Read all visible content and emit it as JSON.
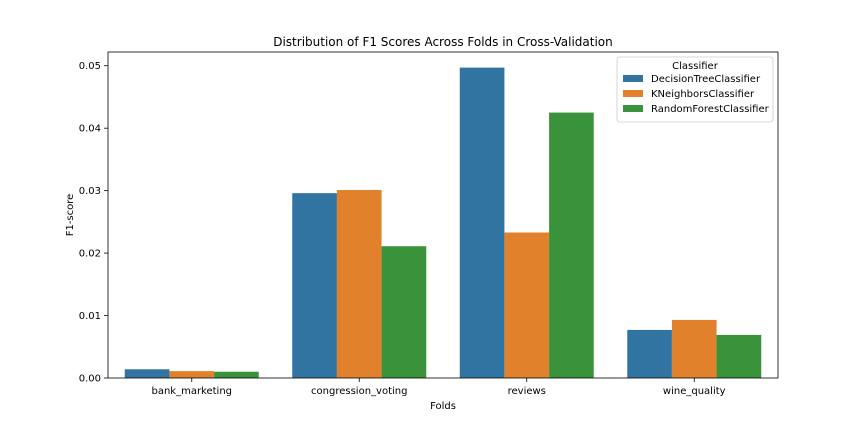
{
  "chart_data": {
    "type": "bar",
    "title": "Distribution of F1 Scores Across Folds in Cross-Validation",
    "xlabel": "Folds",
    "ylabel": "F1-score",
    "categories": [
      "bank_marketing",
      "congression_voting",
      "reviews",
      "wine_quality"
    ],
    "series": [
      {
        "name": "DecisionTreeClassifier",
        "color": "#3274a1",
        "values": [
          0.0014,
          0.0296,
          0.0497,
          0.0077
        ]
      },
      {
        "name": "KNeighborsClassifier",
        "color": "#e1812c",
        "values": [
          0.0011,
          0.0301,
          0.0233,
          0.0093
        ]
      },
      {
        "name": "RandomForestClassifier",
        "color": "#3a923a",
        "values": [
          0.001,
          0.0211,
          0.0425,
          0.0069
        ]
      }
    ],
    "ylim": [
      0,
      0.0522
    ],
    "yticks": [
      0.0,
      0.01,
      0.02,
      0.03,
      0.04,
      0.05
    ],
    "ytick_labels": [
      "0.00",
      "0.01",
      "0.02",
      "0.03",
      "0.04",
      "0.05"
    ],
    "legend": {
      "title": "Classifier",
      "placement": "top-right"
    },
    "grid": false
  }
}
